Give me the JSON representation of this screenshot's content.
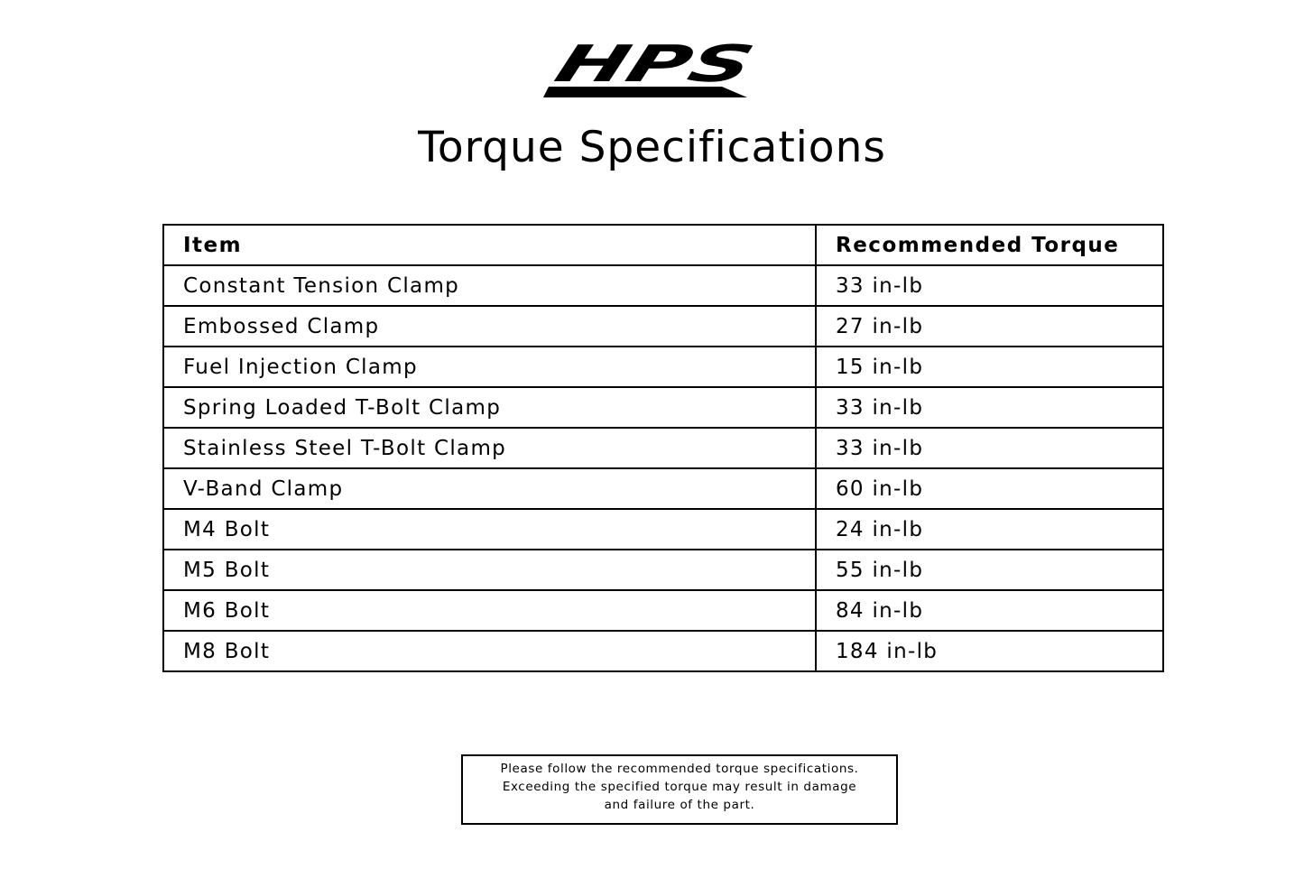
{
  "logo": {
    "text": "HPS"
  },
  "title": "Torque Specifications",
  "table": {
    "headers": [
      "Item",
      "Recommended Torque"
    ],
    "rows": [
      [
        "Constant Tension Clamp",
        "33 in-lb"
      ],
      [
        "Embossed Clamp",
        "27 in-lb"
      ],
      [
        "Fuel Injection Clamp",
        "15 in-lb"
      ],
      [
        "Spring Loaded T-Bolt Clamp",
        "33 in-lb"
      ],
      [
        "Stainless Steel T-Bolt Clamp",
        "33 in-lb"
      ],
      [
        "V-Band Clamp",
        "60 in-lb"
      ],
      [
        "M4 Bolt",
        "24 in-lb"
      ],
      [
        "M5 Bolt",
        "55 in-lb"
      ],
      [
        "M6 Bolt",
        "84 in-lb"
      ],
      [
        "M8 Bolt",
        "184 in-lb"
      ]
    ]
  },
  "note": {
    "lines": [
      "Please follow the recommended torque specifications.",
      "Exceeding the specified torque may result in damage",
      "and failure of the part."
    ]
  }
}
